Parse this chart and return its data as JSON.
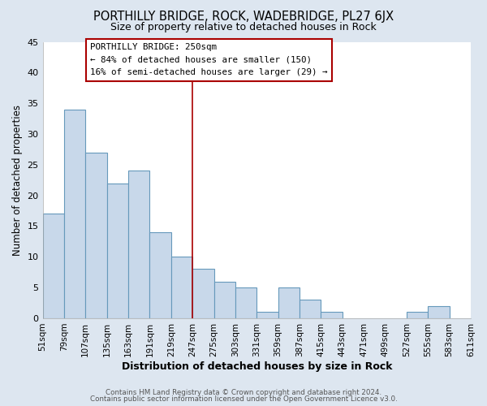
{
  "title": "PORTHILLY BRIDGE, ROCK, WADEBRIDGE, PL27 6JX",
  "subtitle": "Size of property relative to detached houses in Rock",
  "xlabel": "Distribution of detached houses by size in Rock",
  "ylabel": "Number of detached properties",
  "bar_color": "#c8d8ea",
  "bar_edge_color": "#6699bb",
  "plot_bg_color": "#dde6f0",
  "fig_bg_color": "#dde6f0",
  "grid_color": "#ffffff",
  "bins": [
    51,
    79,
    107,
    135,
    163,
    191,
    219,
    247,
    275,
    303,
    331,
    359,
    387,
    415,
    443,
    471,
    499,
    527,
    555,
    583,
    611
  ],
  "values": [
    17,
    34,
    27,
    22,
    24,
    14,
    10,
    8,
    6,
    5,
    1,
    5,
    3,
    1,
    0,
    0,
    0,
    1,
    2,
    0
  ],
  "tick_labels": [
    "51sqm",
    "79sqm",
    "107sqm",
    "135sqm",
    "163sqm",
    "191sqm",
    "219sqm",
    "247sqm",
    "275sqm",
    "303sqm",
    "331sqm",
    "359sqm",
    "387sqm",
    "415sqm",
    "443sqm",
    "471sqm",
    "499sqm",
    "527sqm",
    "555sqm",
    "583sqm",
    "611sqm"
  ],
  "vline_x": 247,
  "vline_color": "#aa0000",
  "ylim": [
    0,
    45
  ],
  "yticks": [
    0,
    5,
    10,
    15,
    20,
    25,
    30,
    35,
    40,
    45
  ],
  "annotation_title": "PORTHILLY BRIDGE: 250sqm",
  "annotation_line1": "← 84% of detached houses are smaller (150)",
  "annotation_line2": "16% of semi-detached houses are larger (29) →",
  "annotation_box_color": "#ffffff",
  "annotation_box_edge": "#aa0000",
  "footer1": "Contains HM Land Registry data © Crown copyright and database right 2024.",
  "footer2": "Contains public sector information licensed under the Open Government Licence v3.0."
}
